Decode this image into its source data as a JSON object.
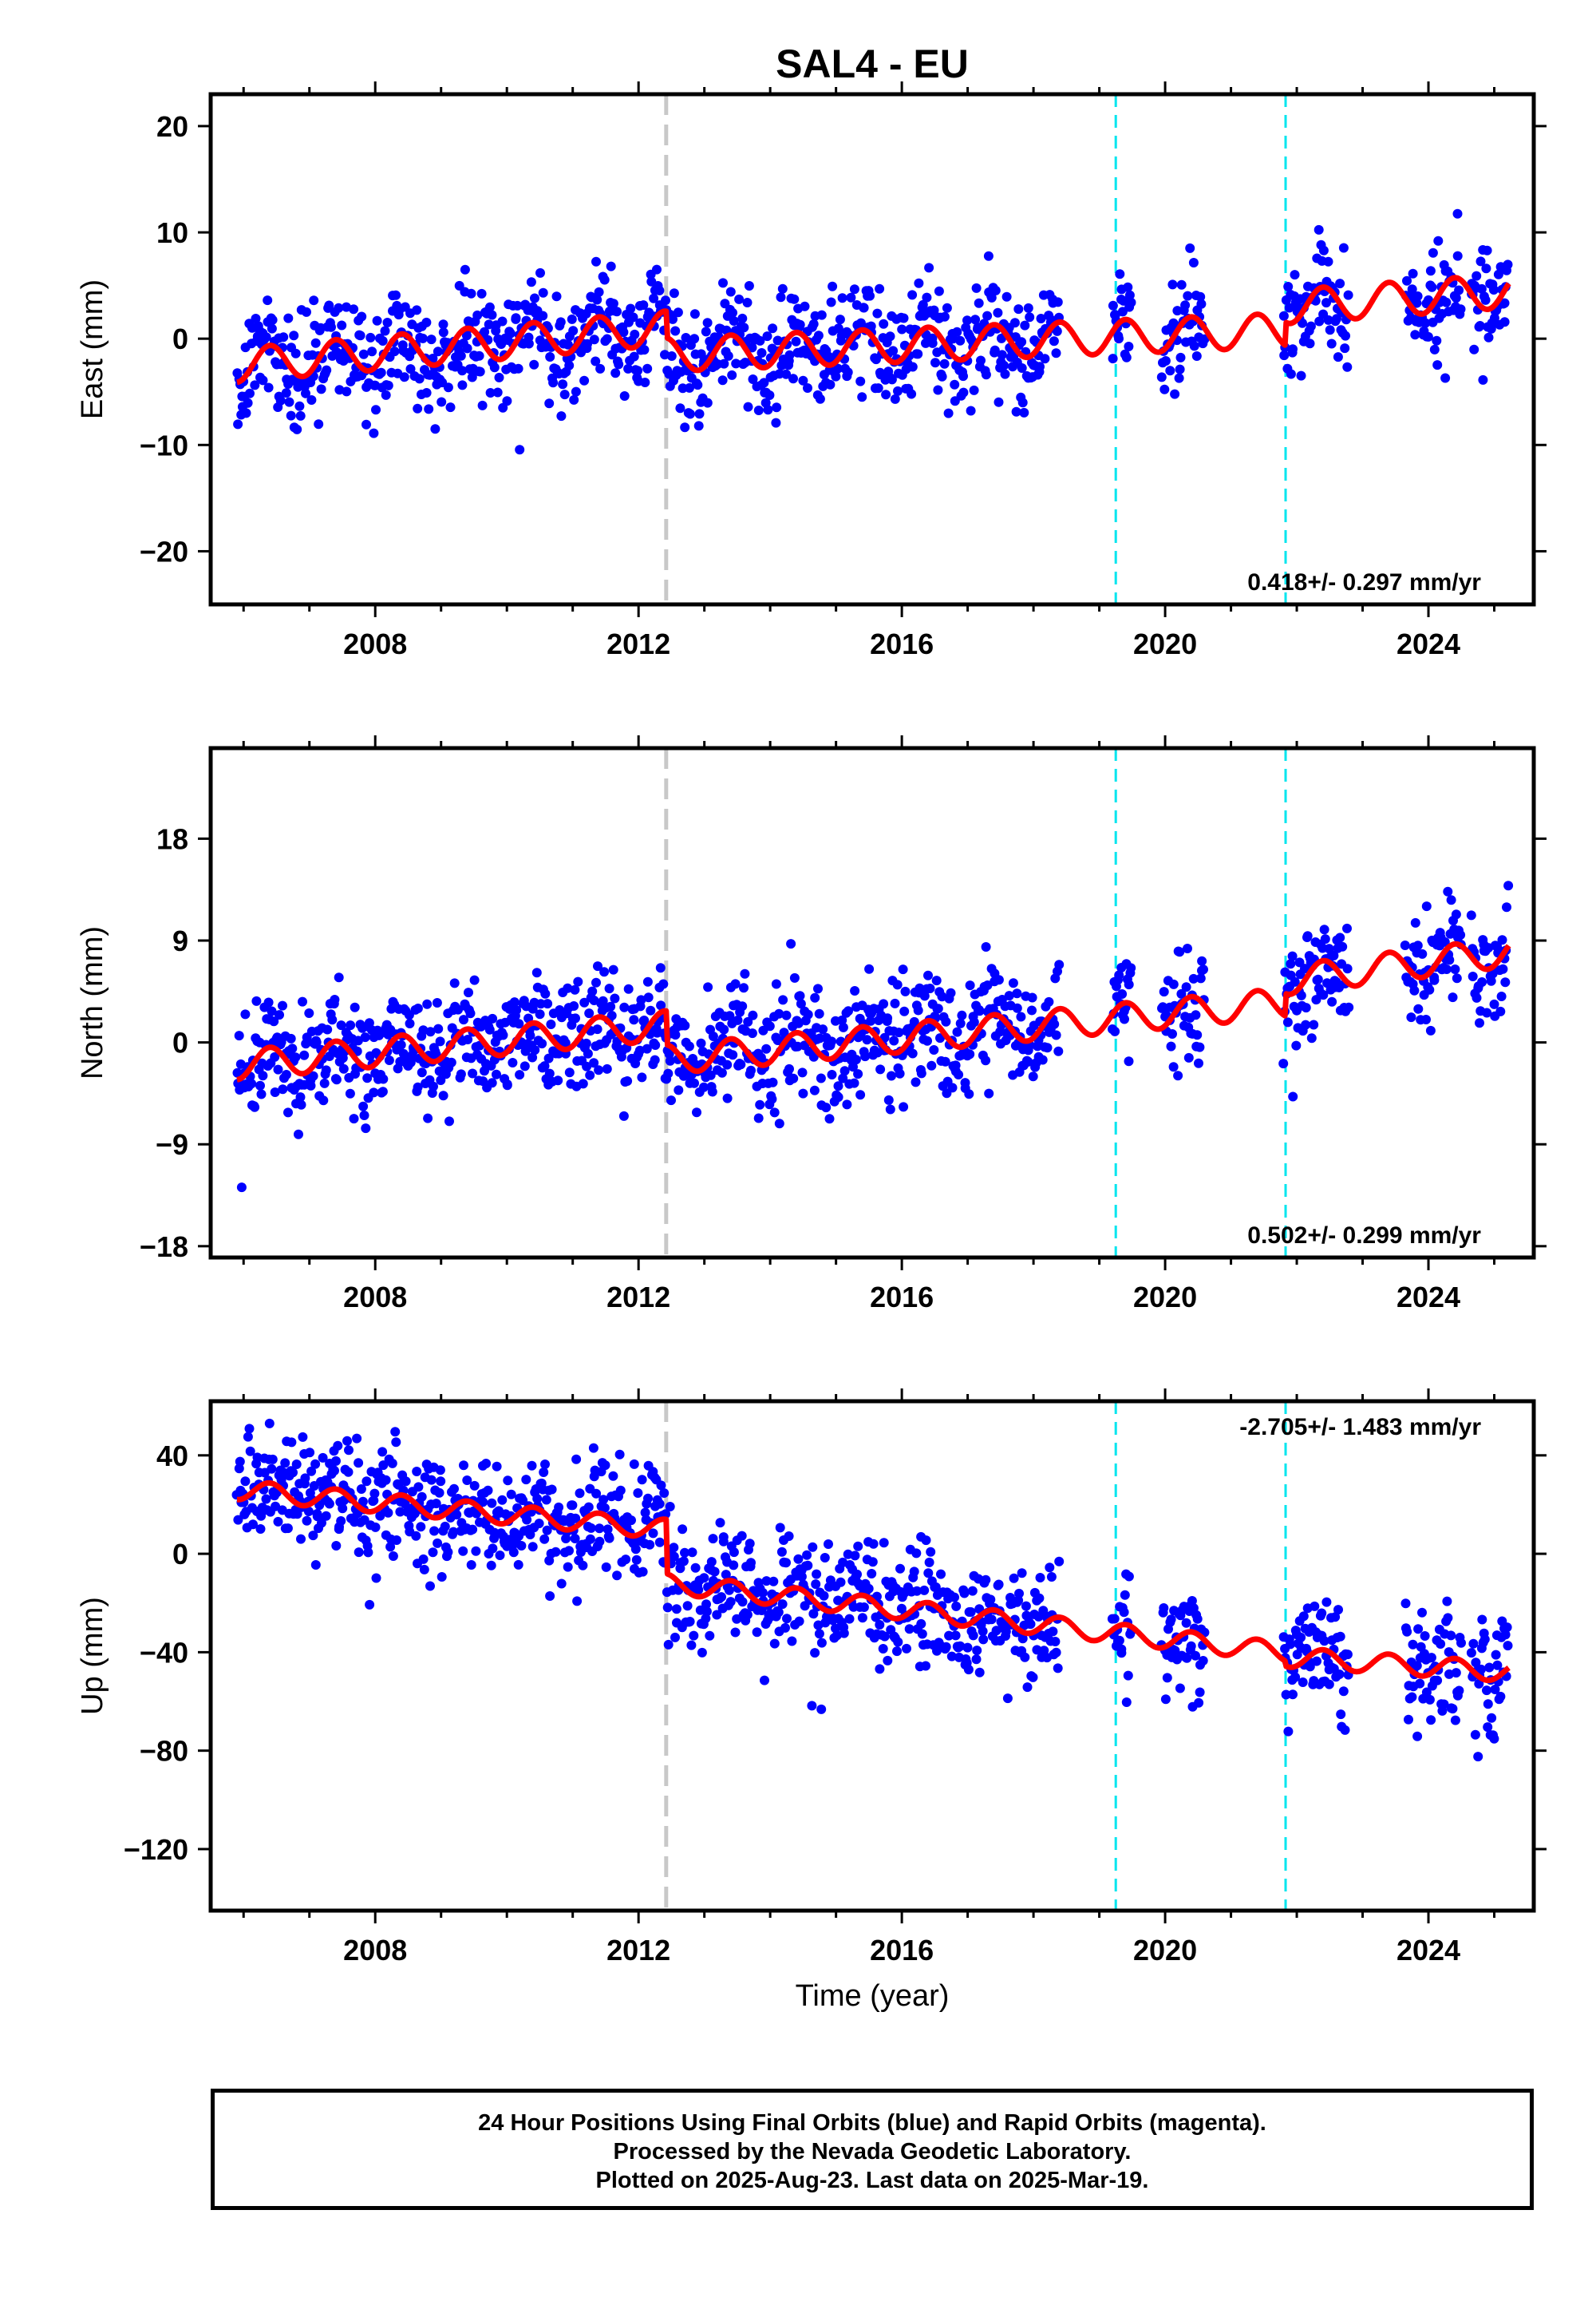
{
  "title": "SAL4 - EU",
  "xlabel": "Time (year)",
  "footer": {
    "line1": "24 Hour Positions Using Final Orbits (blue) and Rapid Orbits (magenta).",
    "line2": "Processed by the Nevada Geodetic Laboratory.",
    "line3": "Plotted on 2025-Aug-23. Last data on 2025-Mar-19."
  },
  "colors": {
    "points": "#0000ff",
    "model": "#ff0000",
    "equipment_change": "#c8c8c8",
    "earthquake": "#00e5ee"
  },
  "chart_data": [
    {
      "type": "scatter",
      "panel": "east",
      "ylabel": "East (mm)",
      "xlim": [
        2005.5,
        2025.6
      ],
      "ylim": [
        -25,
        23
      ],
      "xticks": [
        2008,
        2012,
        2016,
        2020,
        2024
      ],
      "yticks": [
        -20,
        -10,
        0,
        10,
        20
      ],
      "ytick_labels": [
        "−20",
        "−10",
        "0",
        "10",
        "20"
      ],
      "rate_label": "0.418+/- 0.297 mm/yr",
      "rate_position": "bottom-right",
      "vlines": [
        {
          "x": 2012.42,
          "kind": "equipment_change"
        },
        {
          "x": 2019.25,
          "kind": "earthquake"
        },
        {
          "x": 2021.83,
          "kind": "earthquake"
        }
      ],
      "data_segments": [
        [
          2005.9,
          2018.4
        ],
        [
          2019.2,
          2019.5
        ],
        [
          2019.95,
          2020.6
        ],
        [
          2021.8,
          2022.8
        ],
        [
          2023.65,
          2024.5
        ],
        [
          2024.65,
          2025.22
        ]
      ],
      "trend": [
        {
          "from": 2005.9,
          "to": 2012.42,
          "y0": -2.5,
          "y1": 1.0
        },
        {
          "from": 2012.42,
          "to": 2021.83,
          "y0": -1.5,
          "y1": 0.8
        },
        {
          "from": 2021.83,
          "to": 2025.22,
          "y0": 3.0,
          "y1": 4.5
        }
      ],
      "seasonal_amplitude": 1.6,
      "scatter_sd": 2.8
    },
    {
      "type": "scatter",
      "panel": "north",
      "ylabel": "North (mm)",
      "xlim": [
        2005.5,
        2025.6
      ],
      "ylim": [
        -19,
        26
      ],
      "xticks": [
        2008,
        2012,
        2016,
        2020,
        2024
      ],
      "yticks": [
        -18,
        -9,
        0,
        9,
        18
      ],
      "ytick_labels": [
        "−18",
        "−9",
        "0",
        "9",
        "18"
      ],
      "rate_label": "0.502+/- 0.299 mm/yr",
      "rate_position": "bottom-right",
      "vlines": [
        {
          "x": 2012.42,
          "kind": "equipment_change"
        },
        {
          "x": 2019.25,
          "kind": "earthquake"
        },
        {
          "x": 2021.83,
          "kind": "earthquake"
        }
      ],
      "data_segments": [
        [
          2005.9,
          2018.4
        ],
        [
          2019.2,
          2019.5
        ],
        [
          2019.95,
          2020.6
        ],
        [
          2021.8,
          2022.8
        ],
        [
          2023.65,
          2024.5
        ],
        [
          2024.65,
          2025.22
        ]
      ],
      "trend": [
        {
          "from": 2005.9,
          "to": 2012.42,
          "y0": -2.0,
          "y1": 1.5
        },
        {
          "from": 2012.42,
          "to": 2021.83,
          "y0": -1.5,
          "y1": 3.5
        },
        {
          "from": 2021.83,
          "to": 2025.22,
          "y0": 5.5,
          "y1": 8.0
        }
      ],
      "seasonal_amplitude": 1.3,
      "scatter_sd": 2.7
    },
    {
      "type": "scatter",
      "panel": "up",
      "ylabel": "Up (mm)",
      "xlim": [
        2005.5,
        2025.6
      ],
      "ylim": [
        -145,
        62
      ],
      "xticks": [
        2008,
        2012,
        2016,
        2020,
        2024
      ],
      "yticks": [
        -120,
        -80,
        -40,
        0,
        40
      ],
      "ytick_labels": [
        "−120",
        "−80",
        "−40",
        "0",
        "40"
      ],
      "rate_label": "-2.705+/- 1.483 mm/yr",
      "rate_position": "top-right",
      "vlines": [
        {
          "x": 2012.42,
          "kind": "equipment_change"
        },
        {
          "x": 2019.25,
          "kind": "earthquake"
        },
        {
          "x": 2021.83,
          "kind": "earthquake"
        }
      ],
      "data_segments": [
        [
          2005.9,
          2018.4
        ],
        [
          2019.2,
          2019.5
        ],
        [
          2019.95,
          2020.6
        ],
        [
          2021.8,
          2022.8
        ],
        [
          2023.65,
          2024.5
        ],
        [
          2024.65,
          2025.22
        ]
      ],
      "trend": [
        {
          "from": 2005.9,
          "to": 2012.42,
          "y0": 26,
          "y1": 10
        },
        {
          "from": 2012.42,
          "to": 2021.83,
          "y0": -12,
          "y1": -40
        },
        {
          "from": 2021.83,
          "to": 2025.22,
          "y0": -42,
          "y1": -48
        }
      ],
      "seasonal_amplitude": 4,
      "scatter_sd": 13
    }
  ]
}
